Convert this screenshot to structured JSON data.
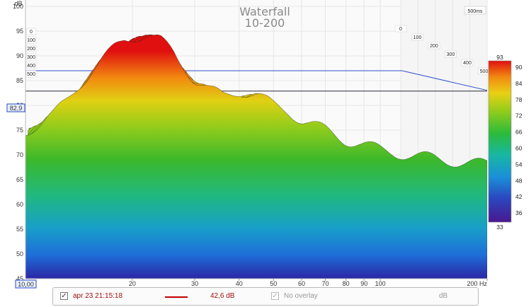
{
  "chart_data": {
    "type": "area",
    "title": "Waterfall",
    "subtitle": "10-200",
    "y_unit": "dB",
    "x_unit": "Hz",
    "y_ticks": [
      100,
      95,
      90,
      85,
      80,
      75,
      70,
      65,
      60,
      55,
      50,
      45
    ],
    "y_axis_top_label": "dB",
    "y_axis_bottom_label": "10,00",
    "x_ticks": [
      "20",
      "30",
      "40",
      "50",
      "60",
      "70",
      "80",
      "90",
      "100",
      "200 Hz"
    ],
    "x_tick_values": [
      20,
      30,
      40,
      50,
      60,
      70,
      80,
      90,
      100,
      200
    ],
    "xlim": [
      10,
      200
    ],
    "ylim": [
      45,
      100
    ],
    "x_scale": "log",
    "time_ticks_front": [
      "0",
      "100",
      "200",
      "300",
      "400",
      "500"
    ],
    "time_ticks_back": [
      "0",
      "100",
      "200",
      "300",
      "400",
      "500"
    ],
    "time_window_label": "500ms",
    "time_range_ms": [
      0,
      500
    ],
    "reference_level_label": "82,9",
    "reference_level": 82.9,
    "reference_level_2": 87,
    "colorbar": {
      "min_label": "33",
      "max_label": "93",
      "ticks": [
        "90",
        "84",
        "78",
        "72",
        "66",
        "60",
        "54",
        "48",
        "42",
        "36"
      ]
    },
    "front_slice": {
      "x": [
        10,
        11,
        12,
        13,
        14,
        15,
        16,
        17,
        18,
        19,
        20,
        22,
        24,
        26,
        28,
        30,
        33,
        36,
        40,
        45,
        50,
        55,
        60,
        70,
        80,
        90,
        100,
        120,
        150,
        200
      ],
      "y": [
        75,
        76,
        78,
        81,
        84,
        86,
        88,
        90,
        92,
        93.5,
        94,
        94,
        93,
        91,
        88,
        85,
        83,
        82,
        83,
        82,
        80,
        79,
        77,
        75,
        73,
        72,
        71,
        70,
        69,
        68
      ]
    }
  },
  "legend": {
    "measurement_label": "apr 23 21:15:18",
    "measurement_level": "42,6 dB",
    "overlay_label": "No overlay",
    "unit_label": "dB",
    "line_color": "#c00000"
  }
}
